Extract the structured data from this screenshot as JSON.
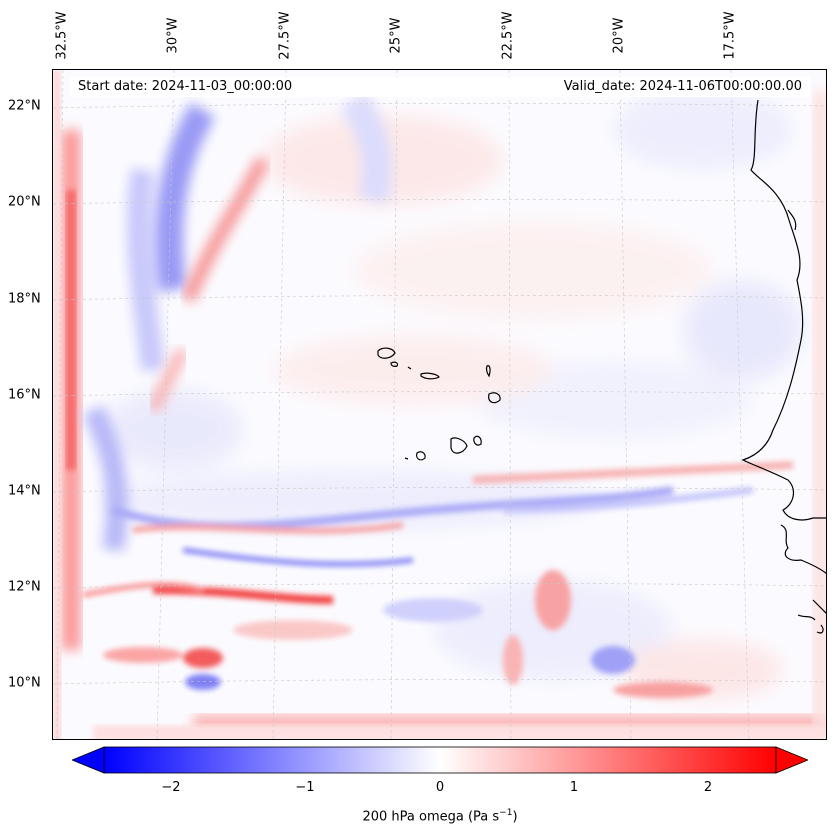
{
  "map": {
    "start_date": "Start date: 2024-11-03_00:00:00",
    "valid_date": "Valid_date: 2024-11-06T00:00:00.00",
    "lon_labels": [
      "32.5°W",
      "30°W",
      "27.5°W",
      "25°W",
      "22.5°W",
      "20°W",
      "17.5°W"
    ],
    "lat_labels": [
      "22°N",
      "20°N",
      "18°N",
      "16°N",
      "14°N",
      "12°N",
      "10°N"
    ],
    "extent": {
      "lon_min": -32.6,
      "lon_max": -15.6,
      "lat_min": 8.9,
      "lat_max": 22.7
    },
    "gridlines": true,
    "coastline_color": "#000000"
  },
  "colorbar": {
    "ticks": [
      "−2",
      "−1",
      "0",
      "1",
      "2"
    ],
    "tick_values": [
      -2,
      -1,
      0,
      1,
      2
    ],
    "range": [
      -2.5,
      2.5
    ],
    "extend": "both",
    "label": "200 hPa omega (Pa s",
    "label_sup": "−1",
    "label_close": ")",
    "colormap": "bwr",
    "colors": {
      "min": "#0000ff",
      "mid": "#ffffff",
      "max": "#ff0000"
    }
  }
}
